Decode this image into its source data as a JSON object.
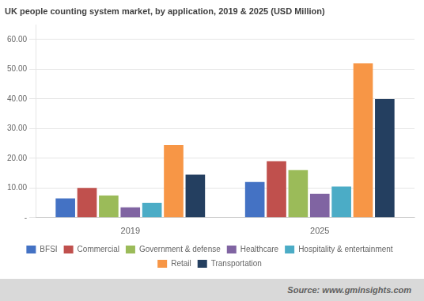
{
  "chart_data": {
    "type": "bar",
    "title": "UK people counting system market, by application, 2019 & 2025 (USD Million)",
    "categories": [
      "2019",
      "2025"
    ],
    "series": [
      {
        "name": "BFSI",
        "color": "#4472C4",
        "values": [
          6.5,
          12.0
        ]
      },
      {
        "name": "Commercial",
        "color": "#C0504D",
        "values": [
          10.0,
          19.0
        ]
      },
      {
        "name": "Government & defense",
        "color": "#9BBB59",
        "values": [
          7.5,
          16.0
        ]
      },
      {
        "name": "Healthcare",
        "color": "#8064A2",
        "values": [
          3.5,
          8.0
        ]
      },
      {
        "name": "Hospitality & entertainment",
        "color": "#4BACC6",
        "values": [
          5.0,
          10.5
        ]
      },
      {
        "name": "Retail",
        "color": "#F79646",
        "values": [
          24.5,
          52.0
        ]
      },
      {
        "name": "Transportation",
        "color": "#243F60",
        "values": [
          14.5,
          40.0
        ]
      }
    ],
    "ylim": [
      0,
      65
    ],
    "yticks": [
      {
        "value": 0,
        "label": "-"
      },
      {
        "value": 10,
        "label": "10.00"
      },
      {
        "value": 20,
        "label": "20.00"
      },
      {
        "value": 30,
        "label": "30.00"
      },
      {
        "value": 40,
        "label": "40.00"
      },
      {
        "value": 50,
        "label": "50.00"
      },
      {
        "value": 60,
        "label": "60.00"
      }
    ],
    "grid": true,
    "legend": "bottom",
    "annotation": "Source: www.gminsights.com"
  }
}
